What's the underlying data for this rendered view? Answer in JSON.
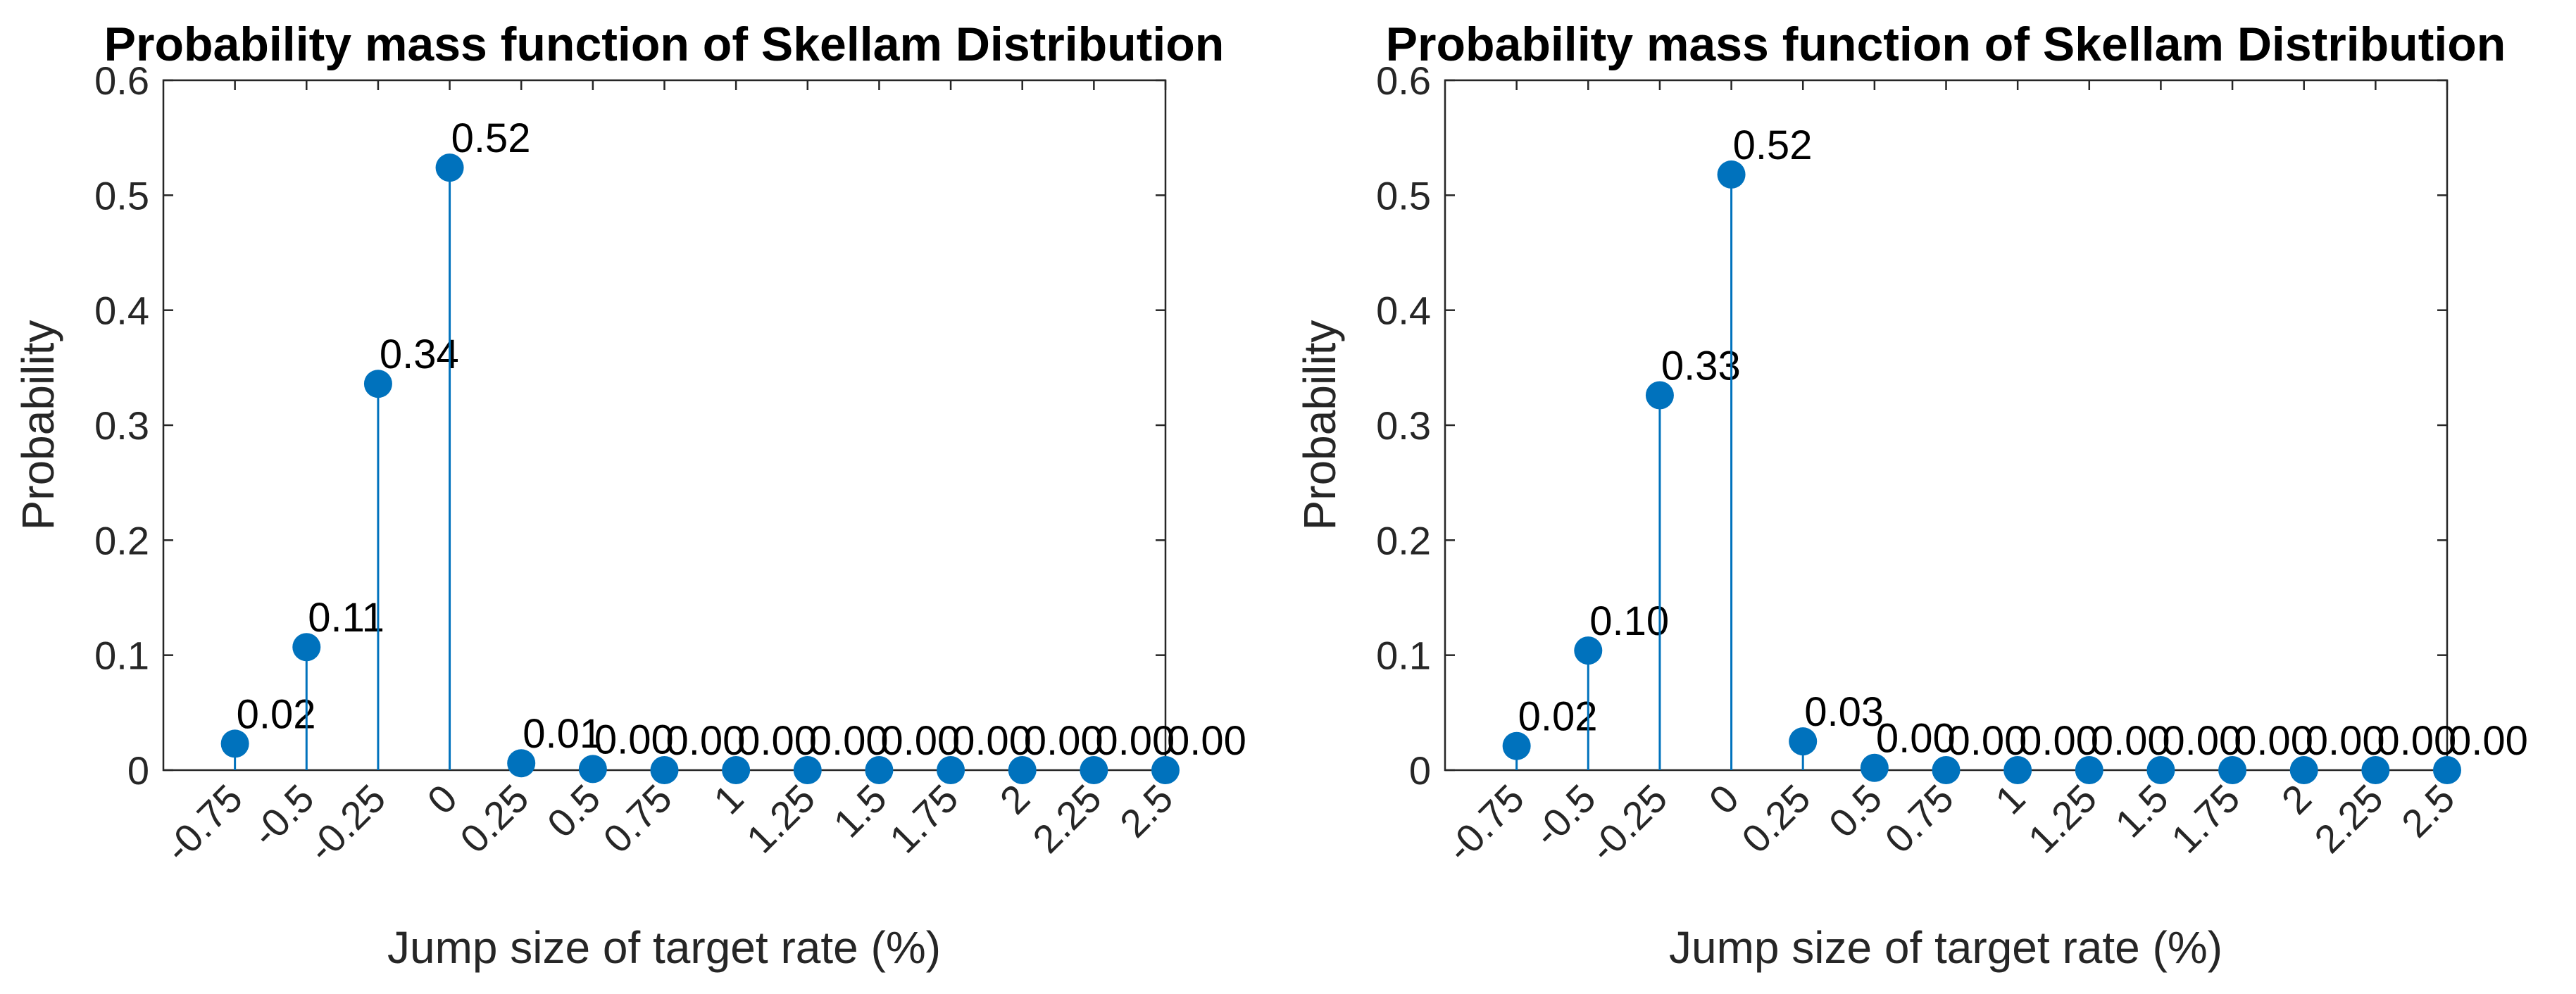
{
  "colors": {
    "series": "#0072BD",
    "axis": "#262626"
  },
  "chart_data": [
    {
      "type": "stem",
      "title": "Probability mass function of Skellam Distribution",
      "xlabel": "Jump size of target rate (%)",
      "ylabel": "Probability",
      "ylim": [
        0,
        0.6
      ],
      "xlim": [
        -1,
        2.5
      ],
      "yticks": [
        "0",
        "0.1",
        "0.2",
        "0.3",
        "0.4",
        "0.5",
        "0.6"
      ],
      "x": [
        -0.75,
        -0.5,
        -0.25,
        0,
        0.25,
        0.5,
        0.75,
        1,
        1.25,
        1.5,
        1.75,
        2,
        2.25,
        2.5
      ],
      "xtick_labels": [
        "-0.75",
        "-0.5",
        "-0.25",
        "0",
        "0.25",
        "0.5",
        "0.75",
        "1",
        "1.25",
        "1.5",
        "1.75",
        "2",
        "2.25",
        "2.5"
      ],
      "values": [
        0.023,
        0.107,
        0.336,
        0.524,
        0.006,
        0.001,
        0,
        0,
        0,
        0,
        0,
        0,
        0,
        0
      ],
      "data_labels": [
        "0.02",
        "0.11",
        "0.34",
        "0.52",
        "0.01",
        "0.00",
        "0.00",
        "0.00",
        "0.00",
        "0.00",
        "0.00",
        "0.00",
        "0.00",
        "0.00"
      ]
    },
    {
      "type": "stem",
      "title": "Probability mass function of Skellam Distribution",
      "xlabel": "Jump size of target rate (%)",
      "ylabel": "Probability",
      "ylim": [
        0,
        0.6
      ],
      "xlim": [
        -1,
        2.5
      ],
      "yticks": [
        "0",
        "0.1",
        "0.2",
        "0.3",
        "0.4",
        "0.5",
        "0.6"
      ],
      "x": [
        -0.75,
        -0.5,
        -0.25,
        0,
        0.25,
        0.5,
        0.75,
        1,
        1.25,
        1.5,
        1.75,
        2,
        2.25,
        2.5
      ],
      "xtick_labels": [
        "-0.75",
        "-0.5",
        "-0.25",
        "0",
        "0.25",
        "0.5",
        "0.75",
        "1",
        "1.25",
        "1.5",
        "1.75",
        "2",
        "2.25",
        "2.5"
      ],
      "values": [
        0.021,
        0.104,
        0.326,
        0.518,
        0.025,
        0.002,
        0,
        0,
        0,
        0,
        0,
        0,
        0,
        0
      ],
      "data_labels": [
        "0.02",
        "0.10",
        "0.33",
        "0.52",
        "0.03",
        "0.00",
        "0.00",
        "0.00",
        "0.00",
        "0.00",
        "0.00",
        "0.00",
        "0.00",
        "0.00"
      ]
    }
  ]
}
